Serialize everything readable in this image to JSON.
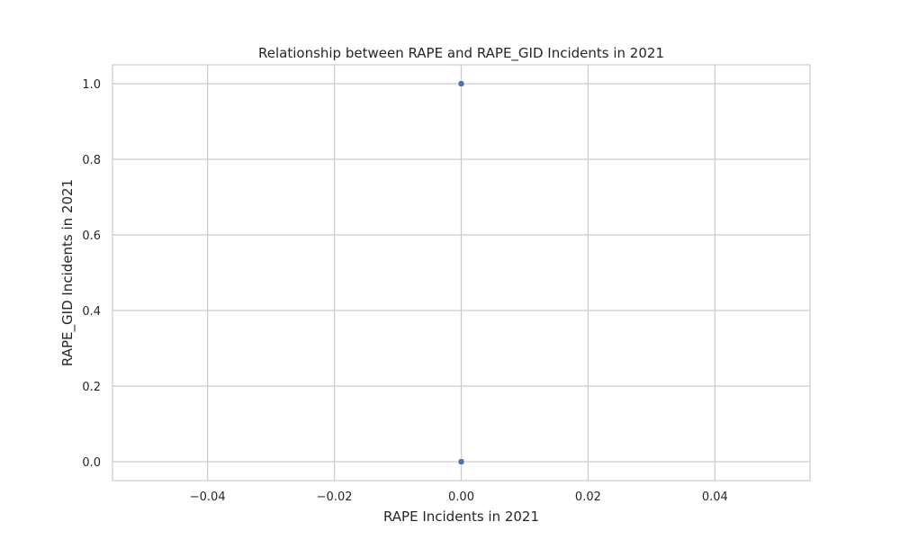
{
  "chart_data": {
    "type": "scatter",
    "title": "Relationship between RAPE and RAPE_GID Incidents in 2021",
    "xlabel": "RAPE Incidents in 2021",
    "ylabel": "RAPE_GID Incidents in 2021",
    "xlim": [
      -0.055,
      0.055
    ],
    "ylim": [
      -0.05,
      1.05
    ],
    "xticks": [
      -0.04,
      -0.02,
      0.0,
      0.02,
      0.04
    ],
    "xtick_labels": [
      "−0.04",
      "−0.02",
      "0.00",
      "0.02",
      "0.04"
    ],
    "yticks": [
      0.0,
      0.2,
      0.4,
      0.6,
      0.8,
      1.0
    ],
    "ytick_labels": [
      "0.0",
      "0.2",
      "0.4",
      "0.6",
      "0.8",
      "1.0"
    ],
    "grid": true,
    "marker_color": "#4c72b0",
    "points": [
      {
        "x": 0,
        "y": 1
      },
      {
        "x": 0,
        "y": 0
      }
    ]
  }
}
